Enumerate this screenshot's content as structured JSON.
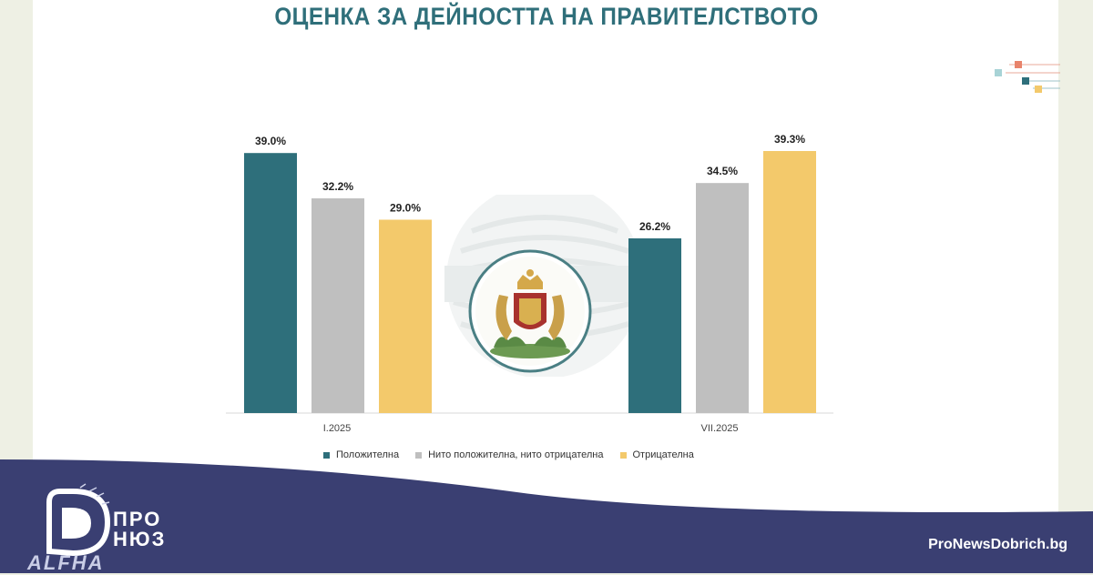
{
  "chart_data": {
    "type": "bar",
    "title": "ОЦЕНКА ЗА ДЕЙНОСТТА НА ПРАВИТЕЛСТВОТО",
    "categories": [
      "I.2025",
      "VII.2025"
    ],
    "series": [
      {
        "name": "Положителна",
        "values": [
          39.0,
          26.2
        ],
        "labels": [
          "39.0%",
          "26.2%"
        ],
        "color": "#2e6f7b"
      },
      {
        "name": "Нито положителна, нито отрицателна",
        "values": [
          32.2,
          34.5
        ],
        "labels": [
          "32.2%",
          "34.5%"
        ],
        "color": "#bfbfbf"
      },
      {
        "name": "Отрицателна",
        "values": [
          29.0,
          39.3
        ],
        "labels": [
          "29.0%",
          "39.3%"
        ],
        "color": "#f3c96b"
      }
    ],
    "ylim": [
      0,
      39.3
    ],
    "grid": false,
    "legend": "bottom"
  },
  "brand": {
    "logo_line1": "ПРО",
    "logo_line2": "НЮЗ",
    "partner": "ALFHA",
    "site": "ProNewsDobrich.bg"
  },
  "colors": {
    "footer": "#3a3f72",
    "title": "#2f6f7a",
    "background": "#eef0e4"
  }
}
